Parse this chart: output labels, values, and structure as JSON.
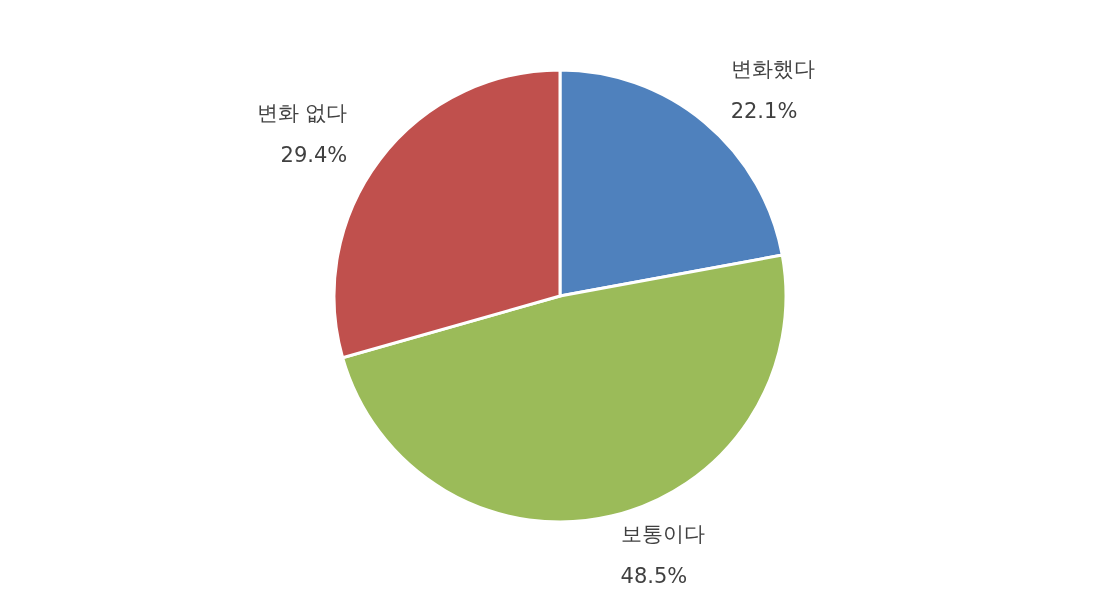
{
  "chart_data": {
    "type": "pie",
    "categories": [
      "변화했다",
      "보통이다",
      "변화 없다"
    ],
    "values": [
      22.1,
      48.5,
      29.4
    ],
    "colors": [
      "#4f81bd",
      "#9bbb59",
      "#c0504d"
    ],
    "value_labels": [
      "22.1%",
      "48.5%",
      "29.4%"
    ]
  }
}
